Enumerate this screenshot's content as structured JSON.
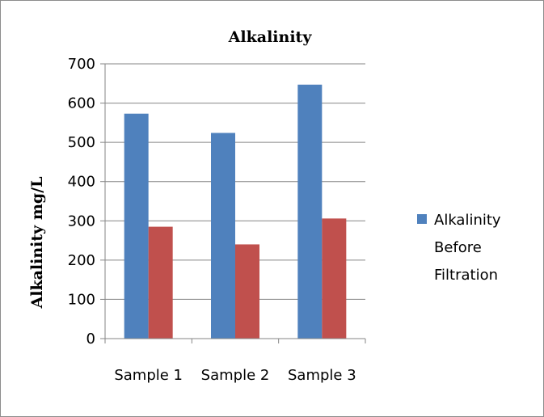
{
  "chart_data": {
    "type": "bar",
    "title": "Alkalinity",
    "ylabel": "Alkalinity mg/L",
    "xlabel": "",
    "categories": [
      "Sample 1",
      "Sample 2",
      "Sample 3"
    ],
    "ylim": [
      0,
      700
    ],
    "yticks": [
      0,
      100,
      200,
      300,
      400,
      500,
      600,
      700
    ],
    "grid": true,
    "legend_position": "right",
    "series": [
      {
        "name": "Alkalinity Before Filtration",
        "legend_lines": [
          "Alkalinity",
          "Before",
          "Filtration"
        ],
        "color": "#4f81bd",
        "values": [
          573,
          524,
          647
        ]
      },
      {
        "color": "#c0504d",
        "values": [
          285,
          240,
          306
        ]
      }
    ]
  }
}
